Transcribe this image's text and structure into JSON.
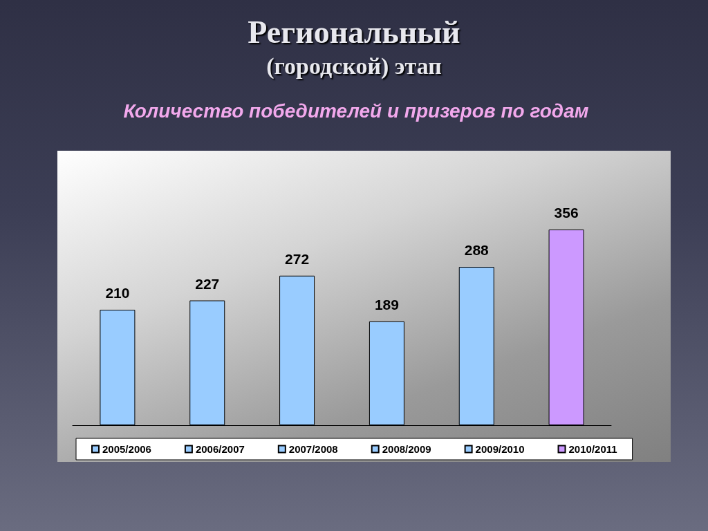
{
  "chart_data": {
    "type": "bar",
    "title": "Региональный\n(городской) этап",
    "subtitle": "Количество победителей и призеров по годам",
    "categories": [
      null,
      null,
      null,
      null,
      null,
      null
    ],
    "stacked": true,
    "series": [
      {
        "name": "2005/2006",
        "color": "#99ccff",
        "values": [
          210,
          null,
          null,
          null,
          null,
          null
        ]
      },
      {
        "name": "2006/2007",
        "color": "#99ccff",
        "values": [
          null,
          227,
          null,
          null,
          null,
          null
        ]
      },
      {
        "name": "2007/2008",
        "color": "#99ccff",
        "values": [
          null,
          null,
          272,
          null,
          null,
          null
        ]
      },
      {
        "name": "2008/2009",
        "color": "#99ccff",
        "values": [
          null,
          null,
          null,
          189,
          null,
          null
        ]
      },
      {
        "name": "2009/2010",
        "color": "#99ccff",
        "values": [
          null,
          null,
          null,
          null,
          288,
          null
        ]
      },
      {
        "name": "2010/2011",
        "color": "#cc99ff",
        "values": [
          null,
          null,
          null,
          null,
          null,
          356
        ]
      }
    ],
    "data_labels": true,
    "legend": "bottom"
  }
}
